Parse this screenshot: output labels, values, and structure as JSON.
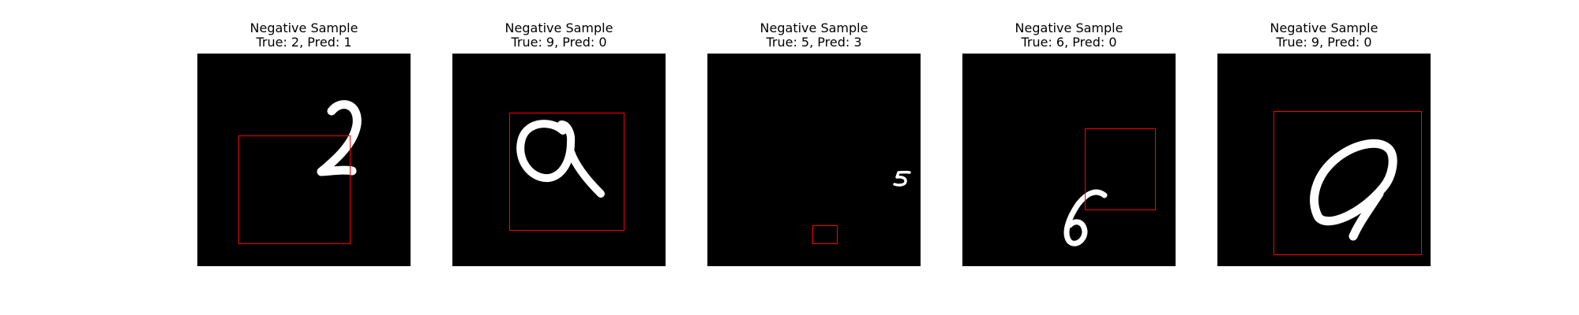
{
  "colors": {
    "background": "#ffffff",
    "image_background": "#000000",
    "digit_stroke": "#ffffff",
    "box_outline": "#ff0000"
  },
  "samples": [
    {
      "heading": "Negative Sample",
      "label": "True: 2, Pred: 1",
      "true_digit": 2,
      "predicted_digit": 1
    },
    {
      "heading": "Negative Sample",
      "label": "True: 9, Pred: 0",
      "true_digit": 9,
      "predicted_digit": 0
    },
    {
      "heading": "Negative Sample",
      "label": "True: 5, Pred: 3",
      "true_digit": 5,
      "predicted_digit": 3
    },
    {
      "heading": "Negative Sample",
      "label": "True: 6, Pred: 0",
      "true_digit": 6,
      "predicted_digit": 0
    },
    {
      "heading": "Negative Sample",
      "label": "True: 9, Pred: 0",
      "true_digit": 9,
      "predicted_digit": 0
    }
  ]
}
